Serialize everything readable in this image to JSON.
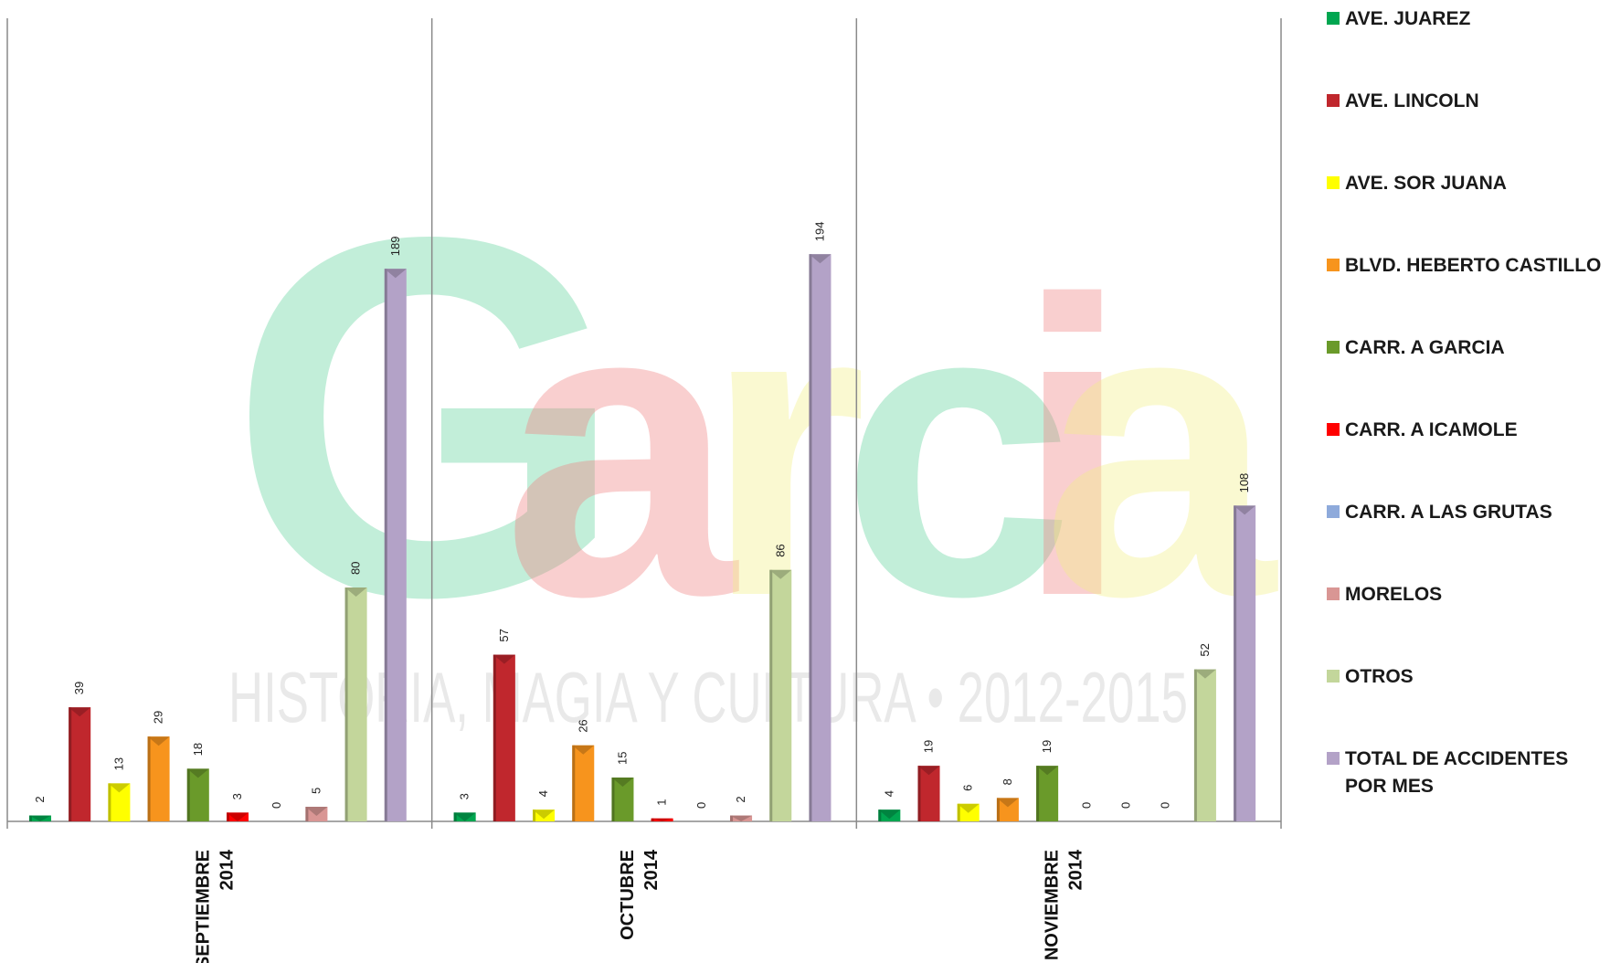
{
  "chart_data": {
    "type": "bar",
    "categories": [
      [
        "SEPTIEMBRE",
        "2014"
      ],
      [
        "OCTUBRE",
        "2014"
      ],
      [
        "NOVIEMBRE",
        "2014"
      ]
    ],
    "series": [
      {
        "name": "AVE. JUAREZ",
        "color": "#00a650",
        "values": [
          2,
          3,
          4
        ]
      },
      {
        "name": "AVE. LINCOLN",
        "color": "#c0272d",
        "values": [
          39,
          57,
          19
        ]
      },
      {
        "name": "AVE. SOR JUANA",
        "color": "#ffff00",
        "values": [
          13,
          4,
          6
        ]
      },
      {
        "name": "BLVD. HEBERTO CASTILLO",
        "color": "#f7941d",
        "values": [
          29,
          26,
          8
        ]
      },
      {
        "name": "CARR. A GARCIA",
        "color": "#6a9a2a",
        "values": [
          18,
          15,
          19
        ]
      },
      {
        "name": "CARR. A ICAMOLE",
        "color": "#ff0000",
        "values": [
          3,
          1,
          0
        ]
      },
      {
        "name": "CARR. A LAS GRUTAS",
        "color": "#8eaadb",
        "values": [
          0,
          0,
          0
        ]
      },
      {
        "name": "MORELOS",
        "color": "#d99694",
        "values": [
          5,
          2,
          0
        ]
      },
      {
        "name": "OTROS",
        "color": "#c3d69b",
        "values": [
          80,
          86,
          52
        ]
      },
      {
        "name": "TOTAL DE ACCIDENTES POR MES",
        "color": "#b3a2c7",
        "values": [
          189,
          194,
          108
        ]
      }
    ],
    "ylim": [
      0,
      250
    ],
    "grid": false,
    "legend_position": "right",
    "watermark": {
      "letters": [
        "G",
        "a",
        "r",
        "c",
        "i",
        "a"
      ],
      "tagline": "HISTORIA, MAGIA Y CULTURA • 2012-2015"
    }
  }
}
